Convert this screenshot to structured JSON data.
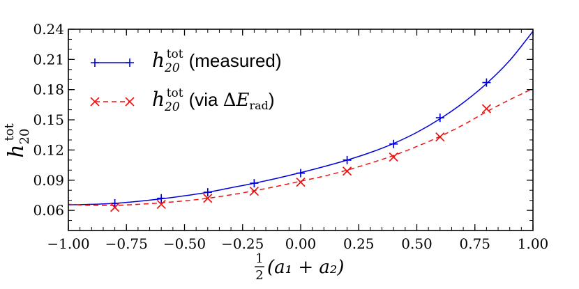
{
  "chart_data": {
    "type": "line",
    "xlim": [
      -1.0,
      1.0
    ],
    "ylim": [
      0.04,
      0.24
    ],
    "xticks": [
      -1.0,
      -0.75,
      -0.5,
      -0.25,
      0.0,
      0.25,
      0.5,
      0.75,
      1.0
    ],
    "xtick_labels": [
      "−1.00",
      "−0.75",
      "−0.50",
      "−0.25",
      "0.00",
      "0.25",
      "0.50",
      "0.75",
      "1.00"
    ],
    "yticks": [
      0.06,
      0.09,
      0.12,
      0.15,
      0.18,
      0.21,
      0.24
    ],
    "ytick_labels": [
      "0.06",
      "0.09",
      "0.12",
      "0.15",
      "0.18",
      "0.21",
      "0.24"
    ],
    "xlabel": {
      "frac_num": "1",
      "frac_den": "2",
      "body": "(a₁ + a₂)"
    },
    "ylabel": {
      "base": "h",
      "sub": "20",
      "sup": "tot"
    },
    "legend_position": "upper-left",
    "series": [
      {
        "name": "measured",
        "legend_base": "h",
        "legend_sub": "20",
        "legend_sup": "tot",
        "legend_text": "(measured)",
        "color": "#0000dd",
        "line_style": "solid",
        "marker": "plus",
        "x": [
          -0.8,
          -0.6,
          -0.4,
          -0.2,
          0.0,
          0.2,
          0.4,
          0.6,
          0.8
        ],
        "values": [
          0.067,
          0.072,
          0.078,
          0.087,
          0.097,
          0.11,
          0.126,
          0.152,
          0.187
        ],
        "curve_x": [
          -1.0,
          -0.9,
          -0.8,
          -0.7,
          -0.6,
          -0.5,
          -0.4,
          -0.3,
          -0.2,
          -0.1,
          0.0,
          0.1,
          0.2,
          0.3,
          0.4,
          0.5,
          0.6,
          0.7,
          0.8,
          0.9,
          1.0
        ],
        "curve_y": [
          0.0655,
          0.066,
          0.067,
          0.069,
          0.0715,
          0.0745,
          0.078,
          0.0825,
          0.087,
          0.092,
          0.0975,
          0.1035,
          0.11,
          0.1175,
          0.1265,
          0.1375,
          0.151,
          0.167,
          0.186,
          0.209,
          0.238
        ]
      },
      {
        "name": "via dE_rad",
        "legend_base": "h",
        "legend_sub": "20",
        "legend_sup": "tot",
        "legend_text_pre": "(via ",
        "legend_delta": "Δ",
        "legend_e": "E",
        "legend_e_sub": "rad",
        "legend_text_post": ")",
        "color": "#ee1111",
        "line_style": "dashed",
        "marker": "x",
        "x": [
          -0.8,
          -0.6,
          -0.4,
          -0.2,
          0.0,
          0.2,
          0.4,
          0.6,
          0.8
        ],
        "values": [
          0.063,
          0.066,
          0.072,
          0.079,
          0.088,
          0.099,
          0.113,
          0.133,
          0.161
        ],
        "curve_x": [
          -1.0,
          -0.9,
          -0.8,
          -0.7,
          -0.6,
          -0.5,
          -0.4,
          -0.3,
          -0.2,
          -0.1,
          0.0,
          0.1,
          0.2,
          0.3,
          0.4,
          0.5,
          0.6,
          0.7,
          0.8,
          0.9,
          1.0
        ],
        "curve_y": [
          0.066,
          0.065,
          0.065,
          0.066,
          0.0675,
          0.0695,
          0.072,
          0.0755,
          0.0795,
          0.084,
          0.089,
          0.094,
          0.1,
          0.107,
          0.1145,
          0.1235,
          0.1335,
          0.145,
          0.158,
          0.17,
          0.181
        ]
      }
    ]
  }
}
